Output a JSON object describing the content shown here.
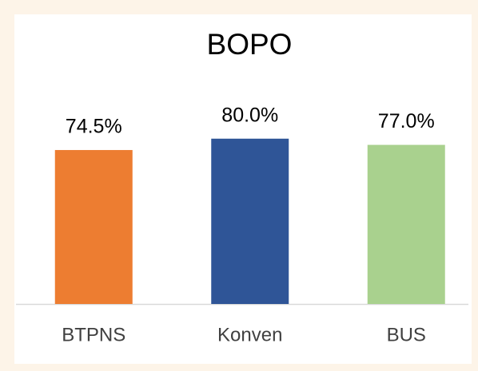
{
  "chart_data": {
    "type": "bar",
    "title": "BOPO",
    "categories": [
      "BTPNS",
      "Konven",
      "BUS"
    ],
    "values": [
      74.5,
      80.0,
      77.0
    ],
    "value_labels": [
      "74.5%",
      "80.0%",
      "77.0%"
    ],
    "colors": [
      "#ed7d31",
      "#2f5597",
      "#a9d18e"
    ],
    "ylim": [
      0,
      100
    ],
    "grid": false
  }
}
